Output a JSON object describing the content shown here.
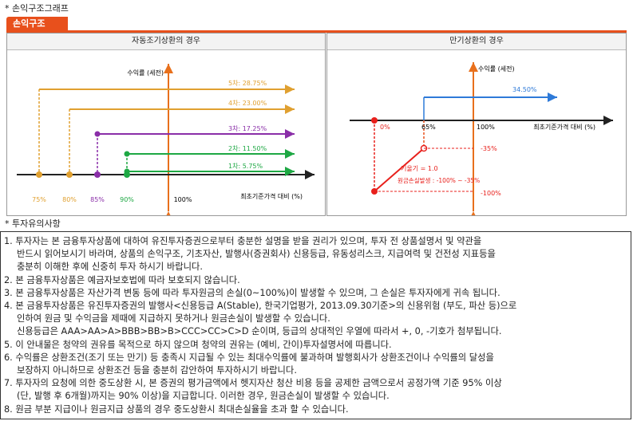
{
  "section1": {
    "title": "* 손익구조그래프",
    "tab": "손익구조"
  },
  "left_panel": {
    "title": "자동조기상환의 경우",
    "ylabel": "수익률 (세전)",
    "xlabel": "최초기준가격 대비 (%)",
    "x_ticks": [
      "75%",
      "80%",
      "85%",
      "90%",
      "100%"
    ],
    "levels": [
      {
        "label": "5차: 28.75%",
        "color": "#e0a030"
      },
      {
        "label": "4차: 23.00%",
        "color": "#e0a030"
      },
      {
        "label": "3차: 17.25%",
        "color": "#8a2ea8"
      },
      {
        "label": "2차: 11.50%",
        "color": "#1ea844"
      },
      {
        "label": "1차: 5.75%",
        "color": "#1ea844"
      }
    ]
  },
  "right_panel": {
    "title": "만기상환의 경우",
    "ylabel": "수익률 (세전)",
    "xlabel": "최초기준가격 대비 (%)",
    "x_ticks": [
      "0%",
      "65%",
      "100%"
    ],
    "gain": "34.50%",
    "loss_top": "-35%",
    "loss_bottom": "-100%",
    "slope": "기울기 = 1.0",
    "loss_note": "원금손실발생 : -100% ~ -35%"
  },
  "section2": {
    "title": "* 투자유의사항"
  },
  "notes": [
    {
      "first": "1. 투자자는 본 금융투자상품에 대하여 유진투자증권으로부터 충분한 설명을 받을 권리가 있으며, 투자 전 상품설명서 및 약관을",
      "rest": [
        "반드시 읽어보시기 바라며, 상품의 손익구조, 기초자산, 발행사(증권회사) 신용등급, 유동성리스크, 지급여력 및 건전성 지표등을",
        "충분히 이해한 후에 신중히 투자 하시기 바랍니다."
      ]
    },
    {
      "first": "2. 본 금융투자상품은 예금자보호법에 따라 보호되지 않습니다.",
      "rest": []
    },
    {
      "first": "3. 본 금융투자상품은 자산가격 변동 등에 따라 투자원금의 손실(0~100%)이 발생할 수 있으며, 그 손실은 투자자에게 귀속 됩니다.",
      "rest": []
    },
    {
      "first": "4. 본 금융투자상품은 유진투자증권의 발행사<신용등급 A(Stable), 한국기업평가, 2013.09.30기준>의 신용위험 (부도, 파산 등)으로",
      "rest": [
        "인하여 원금 및 수익금을 제때에 지급하지 못하거나 원금손실이 발생할 수 있습니다.",
        "신용등급은 AAA>AA>A>BBB>BB>B>CCC>CC>C>D 순이며, 등급의 상대적인 우열에 따라서 +, 0, -기호가 첨부됩니다."
      ]
    },
    {
      "first": "5. 이 안내물은 청약의 권유를 목적으로 하지 않으며 청약의 권유는 (예비, 간이)투자설명서에 따릅니다.",
      "rest": []
    },
    {
      "first": "6. 수익률은 상환조건(조기 또는 만기) 등 충족시 지급될 수 있는 최대수익률에 불과하며 발행회사가 상환조건이나 수익률의 달성을",
      "rest": [
        "보장하지 아니하므로 상환조건 등을 충분히 감안하여 투자하시기 바랍니다."
      ]
    },
    {
      "first": "7. 투자자의 요청에 의한 중도상환 시, 본 증권의 평가금액에서 헷지자산 청산 비용 등을 공제한 금액으로서 공정가액 기준 95% 이상",
      "rest": [
        "(단, 발행 후 6개월)까지는 90% 이상)을 지급합니다. 이러한 경우, 원금손실이 발생할 수 있습니다."
      ]
    },
    {
      "first": "8. 원금 부분 지급이나 원금지급 상품의 경우 중도상환시 최대손실율을 초과 할 수 있습니다.",
      "rest": []
    }
  ]
}
